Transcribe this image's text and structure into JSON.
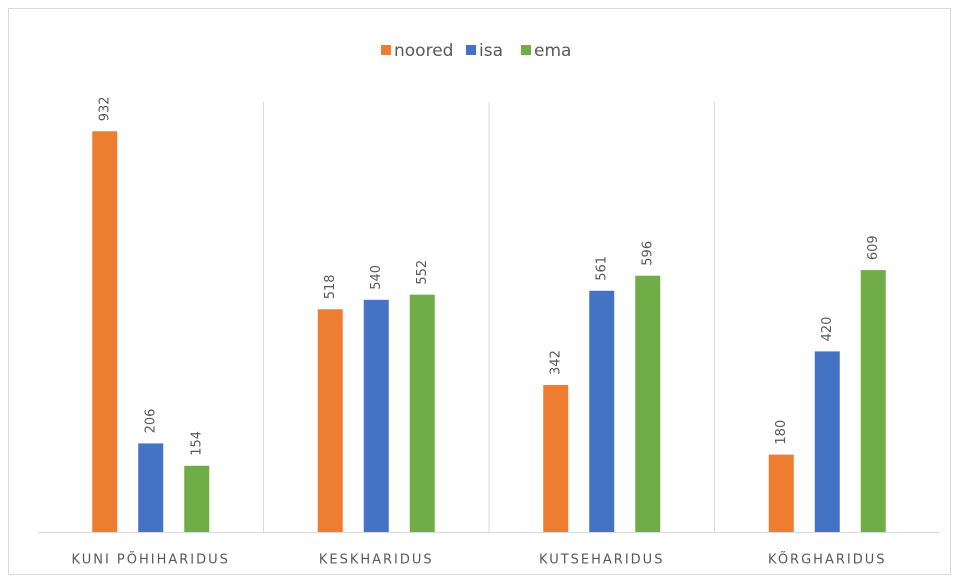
{
  "chart_data": {
    "type": "bar",
    "categories": [
      "KUNI PÕHIHARIDUS",
      "KESKHARIDUS",
      "KUTSEHARIDUS",
      "KÕRGHARIDUS"
    ],
    "series": [
      {
        "name": "noored",
        "color": "#ed7d31",
        "values": [
          932,
          518,
          342,
          180
        ]
      },
      {
        "name": "isa",
        "color": "#4472c4",
        "values": [
          206,
          540,
          561,
          420
        ]
      },
      {
        "name": "ema",
        "color": "#70ad47",
        "values": [
          154,
          552,
          596,
          609
        ]
      }
    ],
    "ylim": [
      0,
      1000
    ],
    "legend": "top"
  }
}
